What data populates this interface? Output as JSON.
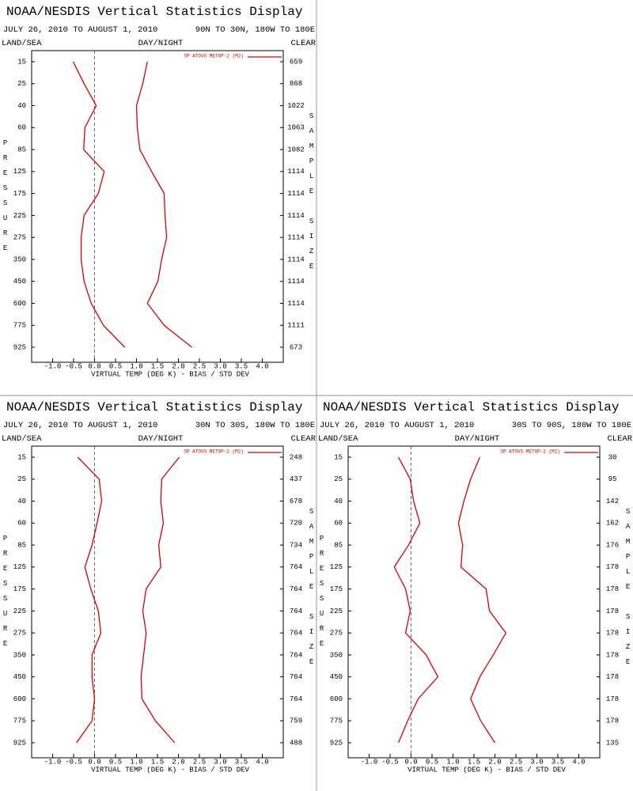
{
  "chart_data": [
    {
      "type": "line",
      "title": "NOAA/NESDIS Vertical Statistics Display",
      "date_range": "JULY 26, 2010 TO AUGUST 1, 2010",
      "region": "90N TO 30N, 180W TO 180E",
      "land_sea": "LAND/SEA",
      "day_night": "DAY/NIGHT",
      "clear": "CLEAR",
      "y_label": "PRESSURE",
      "y2_label": "SAMPLE SIZE",
      "x_label": "VIRTUAL TEMP (DEG K) - BIAS / STD DEV",
      "categories": [
        15,
        25,
        40,
        60,
        85,
        125,
        175,
        225,
        275,
        350,
        450,
        600,
        775,
        925
      ],
      "sample_size": [
        659,
        868,
        1022,
        1063,
        1082,
        1114,
        1114,
        1114,
        1114,
        1114,
        1114,
        1114,
        1111,
        673
      ],
      "series": [
        {
          "name": "SP ATOVS METOP-2 (M2)",
          "color": "#dd0000",
          "values": [
            -0.51,
            -0.25,
            0.04,
            -0.23,
            -0.26,
            0.23,
            0.09,
            -0.25,
            -0.32,
            -0.32,
            -0.25,
            -0.08,
            0.21,
            0.72
          ]
        },
        {
          "color": "#dd0000",
          "values": [
            1.26,
            1.15,
            1.0,
            1.02,
            1.08,
            1.36,
            1.66,
            1.68,
            1.72,
            1.6,
            1.51,
            1.26,
            1.66,
            2.32
          ]
        }
      ],
      "xlim": [
        -1.5,
        4.5
      ],
      "xticks": [
        {
          "value": -1,
          "label": "-1.0"
        },
        {
          "value": -0.5,
          "label": "-0.5"
        },
        {
          "value": 0,
          "label": "0.0"
        },
        {
          "value": 0.5,
          "label": "0.5"
        },
        {
          "value": 1,
          "label": "1.0"
        },
        {
          "value": 1.5,
          "label": "1.5"
        },
        {
          "value": 2,
          "label": "2.0"
        },
        {
          "value": 2.5,
          "label": "2.5"
        },
        {
          "value": 3,
          "label": "3.0"
        },
        {
          "value": 3.5,
          "label": "3.5"
        },
        {
          "value": 4,
          "label": "4.0"
        }
      ]
    },
    {
      "type": "line",
      "title": "NOAA/NESDIS Vertical Statistics Display",
      "date_range": "JULY 26, 2010 TO AUGUST 1, 2010",
      "region": "30N TO 30S, 180W TO 180E",
      "land_sea": "LAND/SEA",
      "day_night": "DAY/NIGHT",
      "clear": "CLEAR",
      "y_label": "PRESSURE",
      "y2_label": "SAMPLE SIZE",
      "x_label": "VIRTUAL TEMP (DEG K) - BIAS / STD DEV",
      "categories": [
        15,
        25,
        40,
        60,
        85,
        125,
        175,
        225,
        275,
        350,
        450,
        600,
        775,
        925
      ],
      "sample_size": [
        248,
        437,
        678,
        720,
        734,
        764,
        764,
        764,
        764,
        764,
        764,
        764,
        759,
        488
      ],
      "series": [
        {
          "name": "SP ATOVS METOP-2 (M2)",
          "color": "#dd0000",
          "values": [
            -0.4,
            0.11,
            0.17,
            0.06,
            -0.06,
            -0.23,
            -0.09,
            0.09,
            0.15,
            -0.06,
            -0.06,
            0.0,
            -0.06,
            -0.43
          ]
        },
        {
          "color": "#dd0000",
          "values": [
            2.02,
            1.6,
            1.58,
            1.64,
            1.53,
            1.58,
            1.23,
            1.15,
            1.23,
            1.17,
            1.11,
            1.13,
            1.45,
            1.91
          ]
        }
      ],
      "xlim": [
        -1.5,
        4.5
      ],
      "xticks": [
        {
          "value": -1,
          "label": "-1.0"
        },
        {
          "value": -0.5,
          "label": "-0.5"
        },
        {
          "value": 0,
          "label": "0.0"
        },
        {
          "value": 0.5,
          "label": "0.5"
        },
        {
          "value": 1,
          "label": "1.0"
        },
        {
          "value": 1.5,
          "label": "1.5"
        },
        {
          "value": 2,
          "label": "2.0"
        },
        {
          "value": 2.5,
          "label": "2.5"
        },
        {
          "value": 3,
          "label": "3.0"
        },
        {
          "value": 3.5,
          "label": "3.5"
        },
        {
          "value": 4,
          "label": "4.0"
        }
      ]
    },
    {
      "type": "line",
      "title": "NOAA/NESDIS Vertical Statistics Display",
      "date_range": "JULY 26, 2010 TO AUGUST 1, 2010",
      "region": "30S TO 90S, 180W TO 180E",
      "land_sea": "LAND/SEA",
      "day_night": "DAY/NIGHT",
      "clear": "CLEAR",
      "y_label": "PRESSURE",
      "y2_label": "SAMPLE SIZE",
      "x_label": "VIRTUAL TEMP (DEG K) - BIAS / STD DEV",
      "categories": [
        15,
        25,
        40,
        60,
        85,
        125,
        175,
        225,
        275,
        350,
        450,
        600,
        775,
        925
      ],
      "sample_size": [
        30,
        95,
        142,
        162,
        176,
        178,
        178,
        178,
        178,
        178,
        178,
        178,
        178,
        135
      ],
      "series": [
        {
          "name": "SP ATOVS METOP-2 (M2)",
          "color": "#dd0000",
          "values": [
            -0.3,
            -0.02,
            0.06,
            0.21,
            -0.06,
            -0.4,
            -0.13,
            -0.02,
            -0.13,
            0.36,
            0.64,
            0.17,
            -0.08,
            -0.3
          ]
        },
        {
          "color": "#dd0000",
          "values": [
            1.64,
            1.42,
            1.26,
            1.13,
            1.23,
            1.19,
            1.79,
            1.87,
            2.26,
            1.96,
            1.64,
            1.42,
            1.66,
            2.0
          ]
        }
      ],
      "xlim": [
        -1.5,
        4.5
      ],
      "xticks": [
        {
          "value": -1,
          "label": "-1.0"
        },
        {
          "value": -0.5,
          "label": "-0.5"
        },
        {
          "value": 0,
          "label": "0.0"
        },
        {
          "value": 0.5,
          "label": "0.5"
        },
        {
          "value": 1,
          "label": "1.0"
        },
        {
          "value": 1.5,
          "label": "1.5"
        },
        {
          "value": 2,
          "label": "2.0"
        },
        {
          "value": 2.5,
          "label": "2.5"
        },
        {
          "value": 3,
          "label": "3.0"
        },
        {
          "value": 3.5,
          "label": "3.5"
        },
        {
          "value": 4,
          "label": "4.0"
        }
      ]
    }
  ]
}
